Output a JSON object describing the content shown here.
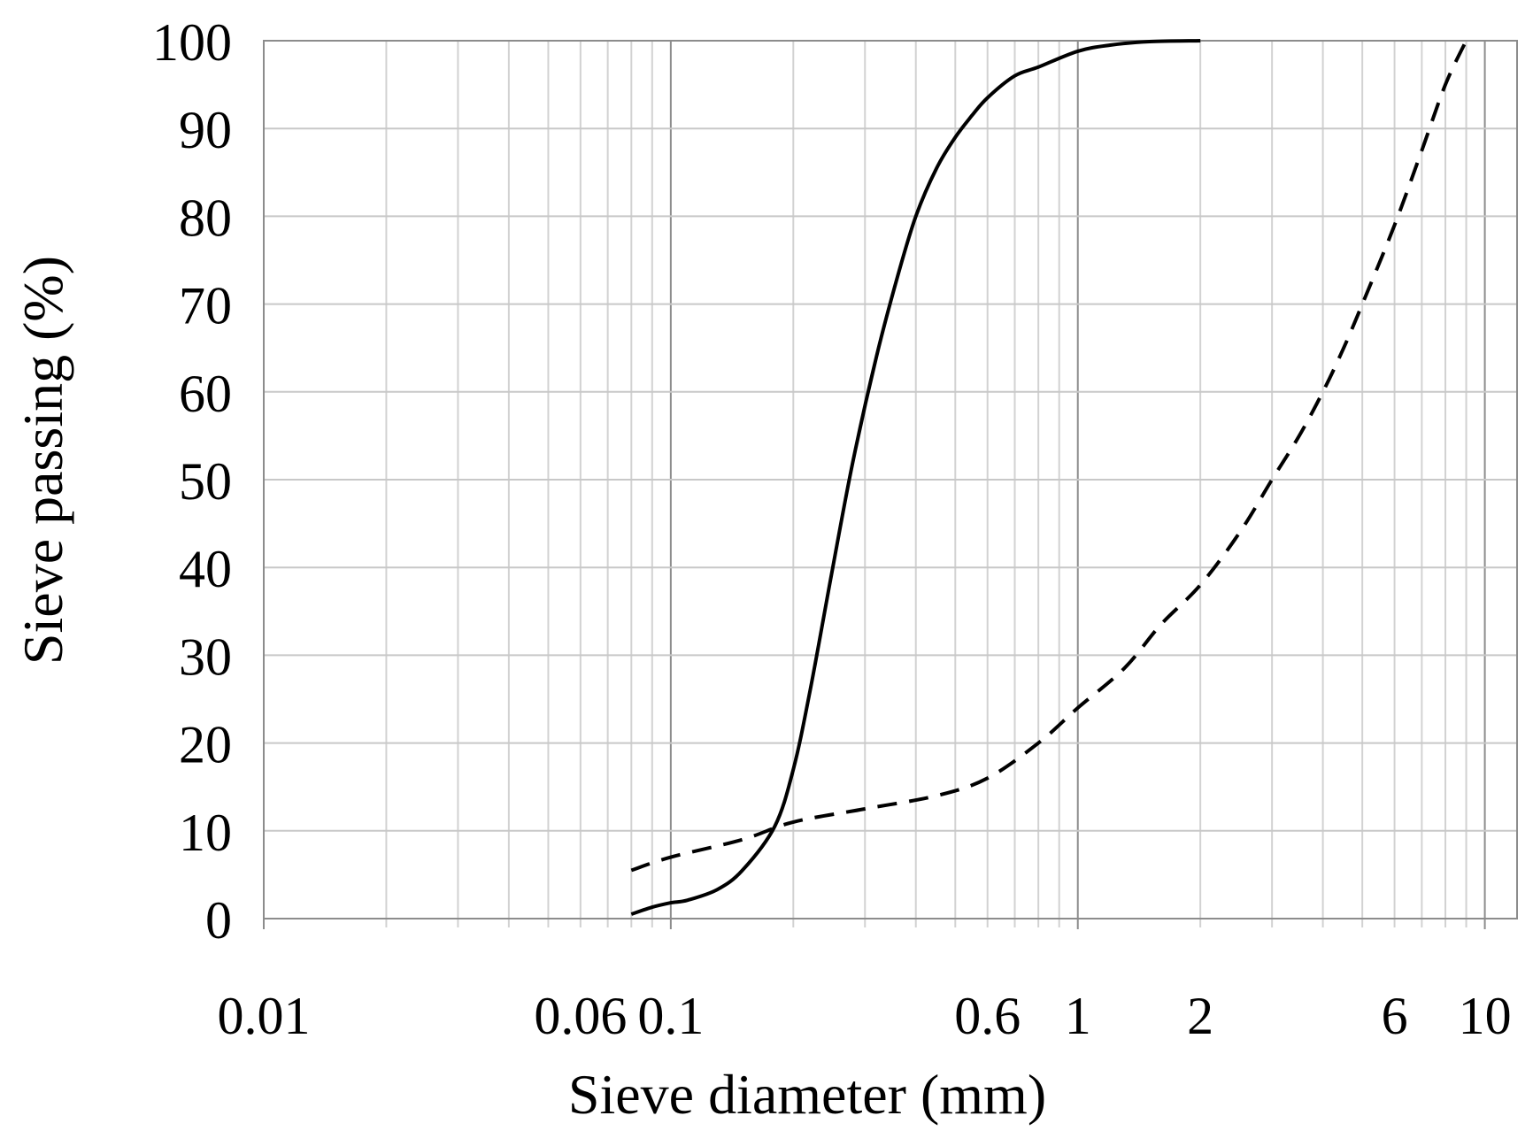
{
  "chart_data": {
    "type": "line",
    "title": "",
    "xlabel": "Sieve diameter (mm)",
    "ylabel": "Sieve passing (%)",
    "xscale": "log",
    "xlim": [
      0.01,
      12
    ],
    "ylim": [
      0,
      100
    ],
    "x_ticks": [
      0.01,
      0.06,
      0.1,
      0.6,
      1,
      2,
      6,
      10
    ],
    "x_tick_labels": [
      "0.01",
      "0.06",
      "0.1",
      "0.6",
      "1",
      "2",
      "6",
      "10"
    ],
    "y_ticks": [
      0,
      10,
      20,
      30,
      40,
      50,
      60,
      70,
      80,
      90,
      100
    ],
    "y_tick_labels": [
      "0",
      "10",
      "20",
      "30",
      "40",
      "50",
      "60",
      "70",
      "80",
      "90",
      "100"
    ],
    "grid": "major and minor",
    "legend": "none",
    "series": [
      {
        "style": "solid",
        "color": "#000000",
        "x": [
          0.08,
          0.09,
          0.1,
          0.11,
          0.13,
          0.15,
          0.18,
          0.2,
          0.22,
          0.25,
          0.28,
          0.32,
          0.36,
          0.4,
          0.45,
          0.5,
          0.55,
          0.6,
          0.7,
          0.8,
          1,
          1.2,
          1.5,
          2
        ],
        "y": [
          0.5,
          1.3,
          1.8,
          2.1,
          3.3,
          5.5,
          10.5,
          17,
          26,
          40,
          52,
          64,
          73,
          80,
          85.5,
          89,
          91.5,
          93.5,
          96,
          97,
          98.8,
          99.5,
          99.9,
          100
        ]
      },
      {
        "style": "dashed",
        "color": "#000000",
        "x": [
          0.08,
          0.1,
          0.15,
          0.2,
          0.3,
          0.45,
          0.6,
          0.8,
          1,
          1.3,
          1.6,
          2,
          2.5,
          3,
          3.5,
          4,
          4.5,
          5,
          6,
          7,
          8,
          9
        ],
        "y": [
          5.5,
          7,
          9,
          11,
          12.5,
          14,
          16,
          20,
          24,
          28.5,
          33.5,
          38,
          44,
          50,
          55,
          60,
          65,
          70,
          79,
          87.5,
          95,
          100
        ]
      }
    ]
  }
}
